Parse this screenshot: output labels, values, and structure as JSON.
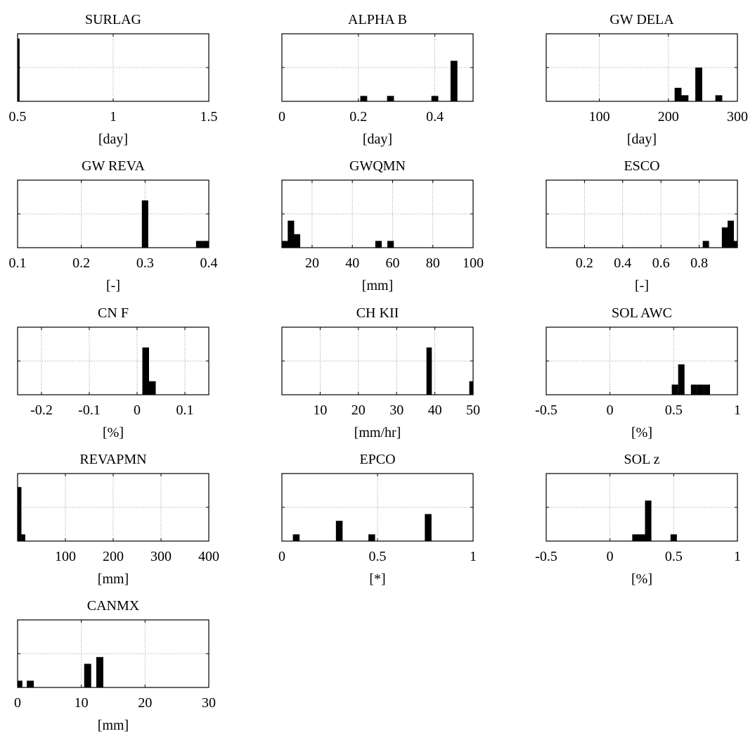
{
  "chart_data": [
    {
      "type": "bar",
      "title": "SURLAG",
      "xlabel": "[day]",
      "xlim": [
        0.5,
        1.5
      ],
      "xticks": [
        0.5,
        1,
        1.5
      ],
      "xtick_labels": [
        "0.5",
        "1",
        "1.5"
      ],
      "ymax": 1.0,
      "bar_width": 0.011,
      "bars": [
        {
          "x": 0.505,
          "h": 0.93
        }
      ]
    },
    {
      "type": "bar",
      "title": "ALPHA B",
      "xlabel": "[day]",
      "xlim": [
        0,
        0.5
      ],
      "xticks": [
        0,
        0.2,
        0.4
      ],
      "xtick_labels": [
        "0",
        "0.2",
        "0.4"
      ],
      "ymax": 1.0,
      "bar_width": 0.018,
      "bars": [
        {
          "x": 0.214,
          "h": 0.08
        },
        {
          "x": 0.284,
          "h": 0.08
        },
        {
          "x": 0.4,
          "h": 0.08
        },
        {
          "x": 0.45,
          "h": 0.6
        }
      ]
    },
    {
      "type": "bar",
      "title": "GW DELA",
      "xlabel": "[day]",
      "xlim": [
        23,
        300
      ],
      "xticks": [
        100,
        200,
        300
      ],
      "xtick_labels": [
        "100",
        "200",
        "300"
      ],
      "ymax": 1.0,
      "bar_width": 10,
      "bars": [
        {
          "x": 214,
          "h": 0.2
        },
        {
          "x": 224,
          "h": 0.09
        },
        {
          "x": 244,
          "h": 0.5
        },
        {
          "x": 273,
          "h": 0.09
        }
      ]
    },
    {
      "type": "bar",
      "title": "GW REVA",
      "xlabel": "[-]",
      "xlim": [
        0.1,
        0.4
      ],
      "xticks": [
        0.1,
        0.2,
        0.3,
        0.4
      ],
      "xtick_labels": [
        "0.1",
        "0.2",
        "0.3",
        "0.4"
      ],
      "ymax": 1.0,
      "bar_width": 0.01,
      "bars": [
        {
          "x": 0.3,
          "h": 0.7
        },
        {
          "x": 0.385,
          "h": 0.1
        },
        {
          "x": 0.395,
          "h": 0.1
        }
      ]
    },
    {
      "type": "bar",
      "title": "GWQMN",
      "xlabel": "[mm]",
      "xlim": [
        5,
        100
      ],
      "xticks": [
        20,
        40,
        60,
        80,
        100
      ],
      "xtick_labels": [
        "20",
        "40",
        "60",
        "80",
        "100"
      ],
      "ymax": 1.0,
      "bar_width": 3.2,
      "bars": [
        {
          "x": 6.5,
          "h": 0.1
        },
        {
          "x": 9.5,
          "h": 0.4
        },
        {
          "x": 12.5,
          "h": 0.2
        },
        {
          "x": 53,
          "h": 0.1
        },
        {
          "x": 59,
          "h": 0.1
        }
      ]
    },
    {
      "type": "bar",
      "title": "ESCO",
      "xlabel": "[-]",
      "xlim": [
        0,
        1
      ],
      "xticks": [
        0.2,
        0.4,
        0.6,
        0.8
      ],
      "xtick_labels": [
        "0.2",
        "0.4",
        "0.6",
        "0.8"
      ],
      "ymax": 1.0,
      "bar_width": 0.033,
      "bars": [
        {
          "x": 0.835,
          "h": 0.1
        },
        {
          "x": 0.935,
          "h": 0.3
        },
        {
          "x": 0.965,
          "h": 0.4
        },
        {
          "x": 0.99,
          "h": 0.1
        }
      ]
    },
    {
      "type": "bar",
      "title": "CN F",
      "xlabel": "[%]",
      "xlim": [
        -0.25,
        0.15
      ],
      "xticks": [
        -0.2,
        -0.1,
        0,
        0.1
      ],
      "xtick_labels": [
        "-0.2",
        "-0.1",
        "0",
        "0.1"
      ],
      "ymax": 1.0,
      "bar_width": 0.014,
      "bars": [
        {
          "x": 0.018,
          "h": 0.7
        },
        {
          "x": 0.032,
          "h": 0.2
        }
      ]
    },
    {
      "type": "bar",
      "title": "CH KII",
      "xlabel": "[mm/hr]",
      "xlim": [
        0,
        50
      ],
      "xticks": [
        10,
        20,
        30,
        40,
        50
      ],
      "xtick_labels": [
        "10",
        "20",
        "30",
        "40",
        "50"
      ],
      "ymax": 1.0,
      "bar_width": 1.4,
      "bars": [
        {
          "x": 38.5,
          "h": 0.7
        },
        {
          "x": 49.7,
          "h": 0.2
        }
      ]
    },
    {
      "type": "bar",
      "title": "SOL AWC",
      "xlabel": "[%]",
      "xlim": [
        -0.5,
        1
      ],
      "xticks": [
        -0.5,
        0,
        0.5,
        1
      ],
      "xtick_labels": [
        "-0.5",
        "0",
        "0.5",
        "1"
      ],
      "ymax": 1.0,
      "bar_width": 0.05,
      "bars": [
        {
          "x": 0.51,
          "h": 0.15
        },
        {
          "x": 0.56,
          "h": 0.45
        },
        {
          "x": 0.66,
          "h": 0.15
        },
        {
          "x": 0.71,
          "h": 0.15
        },
        {
          "x": 0.76,
          "h": 0.15
        }
      ]
    },
    {
      "type": "bar",
      "title": "REVAPMN",
      "xlabel": "[mm]",
      "xlim": [
        0,
        400
      ],
      "xticks": [
        100,
        200,
        300,
        400
      ],
      "xtick_labels": [
        "100",
        "200",
        "300",
        "400"
      ],
      "ymax": 1.0,
      "bar_width": 8,
      "bars": [
        {
          "x": 4,
          "h": 0.8
        },
        {
          "x": 12,
          "h": 0.1
        }
      ]
    },
    {
      "type": "bar",
      "title": "EPCO",
      "xlabel": "[*]",
      "xlim": [
        0,
        1
      ],
      "xticks": [
        0,
        0.5,
        1
      ],
      "xtick_labels": [
        "0",
        "0.5",
        "1"
      ],
      "ymax": 1.0,
      "bar_width": 0.035,
      "bars": [
        {
          "x": 0.075,
          "h": 0.1
        },
        {
          "x": 0.3,
          "h": 0.3
        },
        {
          "x": 0.47,
          "h": 0.1
        },
        {
          "x": 0.765,
          "h": 0.4
        }
      ]
    },
    {
      "type": "bar",
      "title": "SOL z",
      "xlabel": "[%]",
      "xlim": [
        -0.5,
        1
      ],
      "xticks": [
        -0.5,
        0,
        0.5,
        1
      ],
      "xtick_labels": [
        "-0.5",
        "0",
        "0.5",
        "1"
      ],
      "ymax": 1.0,
      "bar_width": 0.05,
      "bars": [
        {
          "x": 0.2,
          "h": 0.1
        },
        {
          "x": 0.25,
          "h": 0.1
        },
        {
          "x": 0.3,
          "h": 0.6
        },
        {
          "x": 0.5,
          "h": 0.1
        }
      ]
    },
    {
      "type": "bar",
      "title": "CANMX",
      "xlabel": "[mm]",
      "xlim": [
        0,
        30
      ],
      "xticks": [
        0,
        10,
        20,
        30
      ],
      "xtick_labels": [
        "0",
        "10",
        "20",
        "30"
      ],
      "ymax": 1.0,
      "bar_width": 1.1,
      "bars": [
        {
          "x": 0.2,
          "h": 0.1
        },
        {
          "x": 2.0,
          "h": 0.1
        },
        {
          "x": 11.0,
          "h": 0.35
        },
        {
          "x": 12.9,
          "h": 0.45
        }
      ]
    }
  ]
}
